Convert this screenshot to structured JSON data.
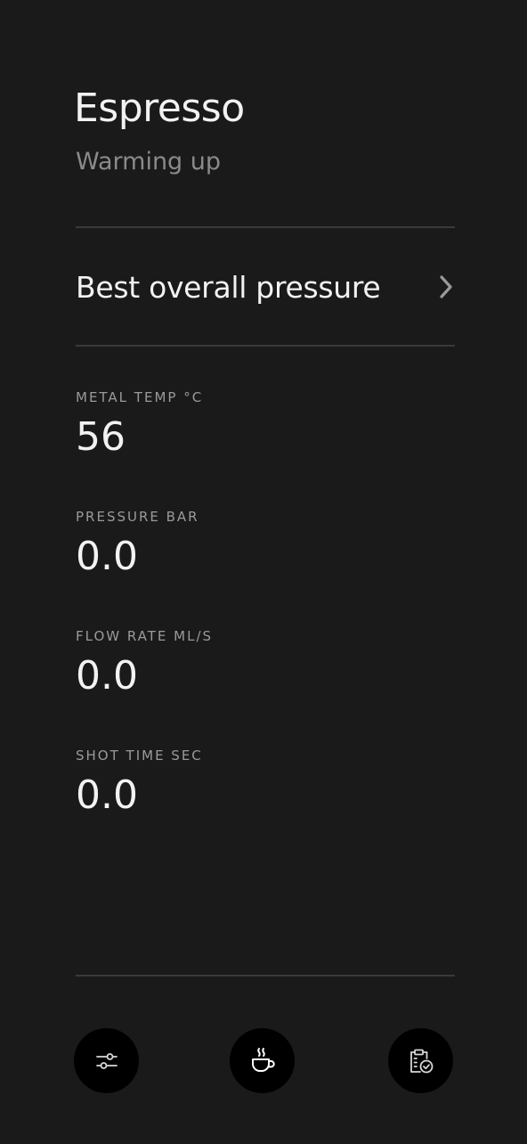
{
  "header": {
    "title": "Espresso",
    "status": "Warming up"
  },
  "profile": {
    "label": "Best overall pressure"
  },
  "metrics": [
    {
      "label": "METAL TEMP °C",
      "value": "56"
    },
    {
      "label": "PRESSURE BAR",
      "value": "0.0"
    },
    {
      "label": "FLOW RATE ML/S",
      "value": "0.0"
    },
    {
      "label": "SHOT TIME SEC",
      "value": "0.0"
    }
  ],
  "nav": {
    "icons": [
      "sliders-icon",
      "coffee-cup-icon",
      "clipboard-check-icon"
    ]
  }
}
